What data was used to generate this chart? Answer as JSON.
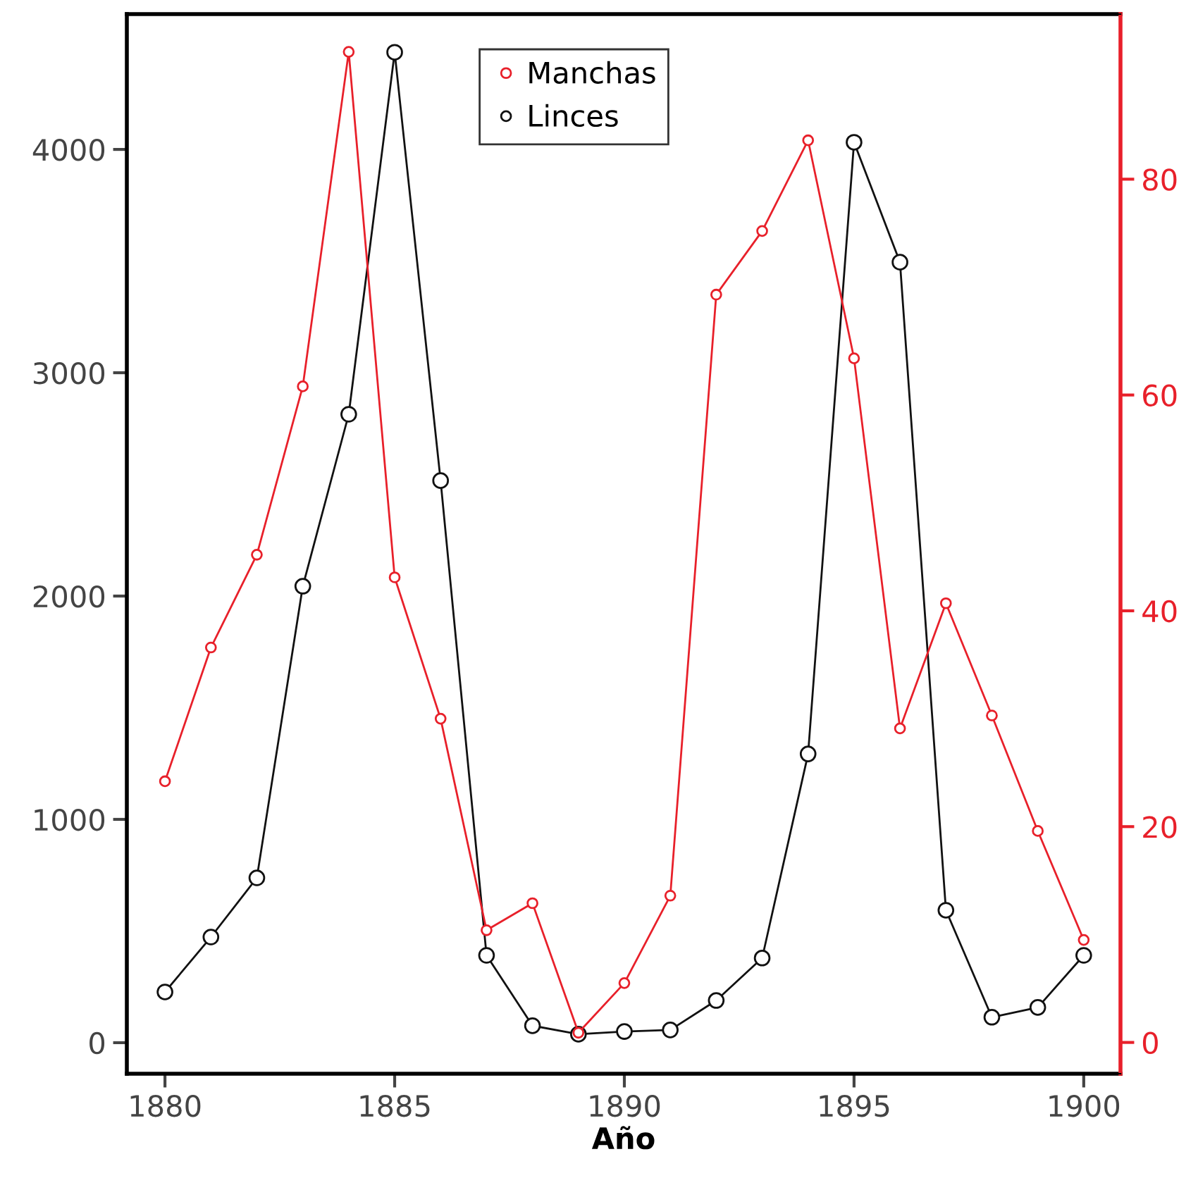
{
  "chart_data": {
    "type": "line",
    "xlabel": "Año",
    "x": [
      1880,
      1881,
      1882,
      1883,
      1884,
      1885,
      1886,
      1887,
      1888,
      1889,
      1890,
      1891,
      1892,
      1893,
      1894,
      1895,
      1896,
      1897,
      1898,
      1899,
      1900
    ],
    "series": [
      {
        "name": "Manchas",
        "color": "#e8202a",
        "axis": "y2",
        "values": [
          24.2,
          36.6,
          45.2,
          60.8,
          91.8,
          43.1,
          30.0,
          10.4,
          12.9,
          0.9,
          5.5,
          13.6,
          69.3,
          75.2,
          83.6,
          63.4,
          29.1,
          40.7,
          30.3,
          19.6,
          9.5
        ]
      },
      {
        "name": "Linces",
        "color": "#111111",
        "values": [
          227,
          473,
          738,
          2044,
          2814,
          4435,
          2517,
          391,
          76,
          38,
          50,
          57,
          189,
          379,
          1293,
          4032,
          3495,
          593,
          114,
          158,
          391
        ]
      }
    ],
    "xlim": [
      1879.17,
      1900.8
    ],
    "xticks": [
      1880,
      1885,
      1890,
      1895,
      1900
    ],
    "ylim": [
      -139,
      4606
    ],
    "yticks": [
      0,
      1000,
      2000,
      3000,
      4000
    ],
    "y2lim": [
      -2.9,
      95.3
    ],
    "y2ticks": [
      0,
      20,
      40,
      60,
      80
    ],
    "marker": "circle",
    "line_style": "solid",
    "grid": false,
    "legend": "top"
  }
}
